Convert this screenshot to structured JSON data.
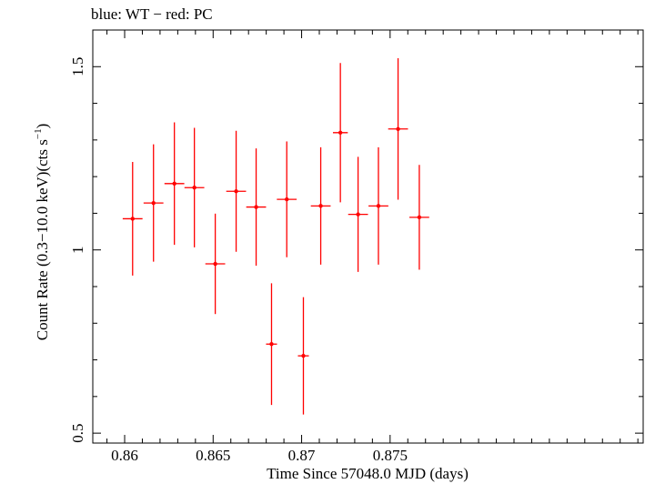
{
  "chart_data": {
    "type": "scatter",
    "title": "blue: WT − red: PC",
    "xlabel": "Time Since 57048.0 MJD (days)",
    "ylabel_main": "Count Rate (0.3−10.0 keV)(cts s",
    "ylabel_sup": "−1",
    "ylabel_close": ")",
    "xlim": [
      0.8582,
      0.8893
    ],
    "ylim": [
      0.473,
      1.6
    ],
    "x_ticks": [
      0.86,
      0.865,
      0.87,
      0.875
    ],
    "x_tick_labels": [
      "0.86",
      "0.865",
      "0.87",
      "0.875"
    ],
    "y_ticks": [
      0.5,
      1,
      1.5
    ],
    "y_tick_labels": [
      "0.5",
      "1",
      "1.5"
    ],
    "grid": false,
    "series": [
      {
        "color": "#ff0000",
        "x": [
          0.86045,
          0.86163,
          0.86281,
          0.86394,
          0.86512,
          0.8663,
          0.86743,
          0.8683,
          0.86916,
          0.8701,
          0.87108,
          0.87219,
          0.87319,
          0.87434,
          0.87545,
          0.87665
        ],
        "xerr": [
          0.00056,
          0.00056,
          0.00056,
          0.00056,
          0.00056,
          0.00056,
          0.00056,
          0.00031,
          0.00056,
          0.00031,
          0.00056,
          0.00042,
          0.00056,
          0.00056,
          0.00056,
          0.00056
        ],
        "y": [
          1.085,
          1.128,
          1.181,
          1.17,
          0.962,
          1.16,
          1.117,
          0.743,
          1.138,
          0.711,
          1.12,
          1.32,
          1.097,
          1.12,
          1.33,
          1.089
        ],
        "yerr": [
          0.155,
          0.16,
          0.167,
          0.163,
          0.137,
          0.165,
          0.16,
          0.166,
          0.158,
          0.16,
          0.16,
          0.19,
          0.157,
          0.16,
          0.193,
          0.143
        ]
      }
    ]
  }
}
